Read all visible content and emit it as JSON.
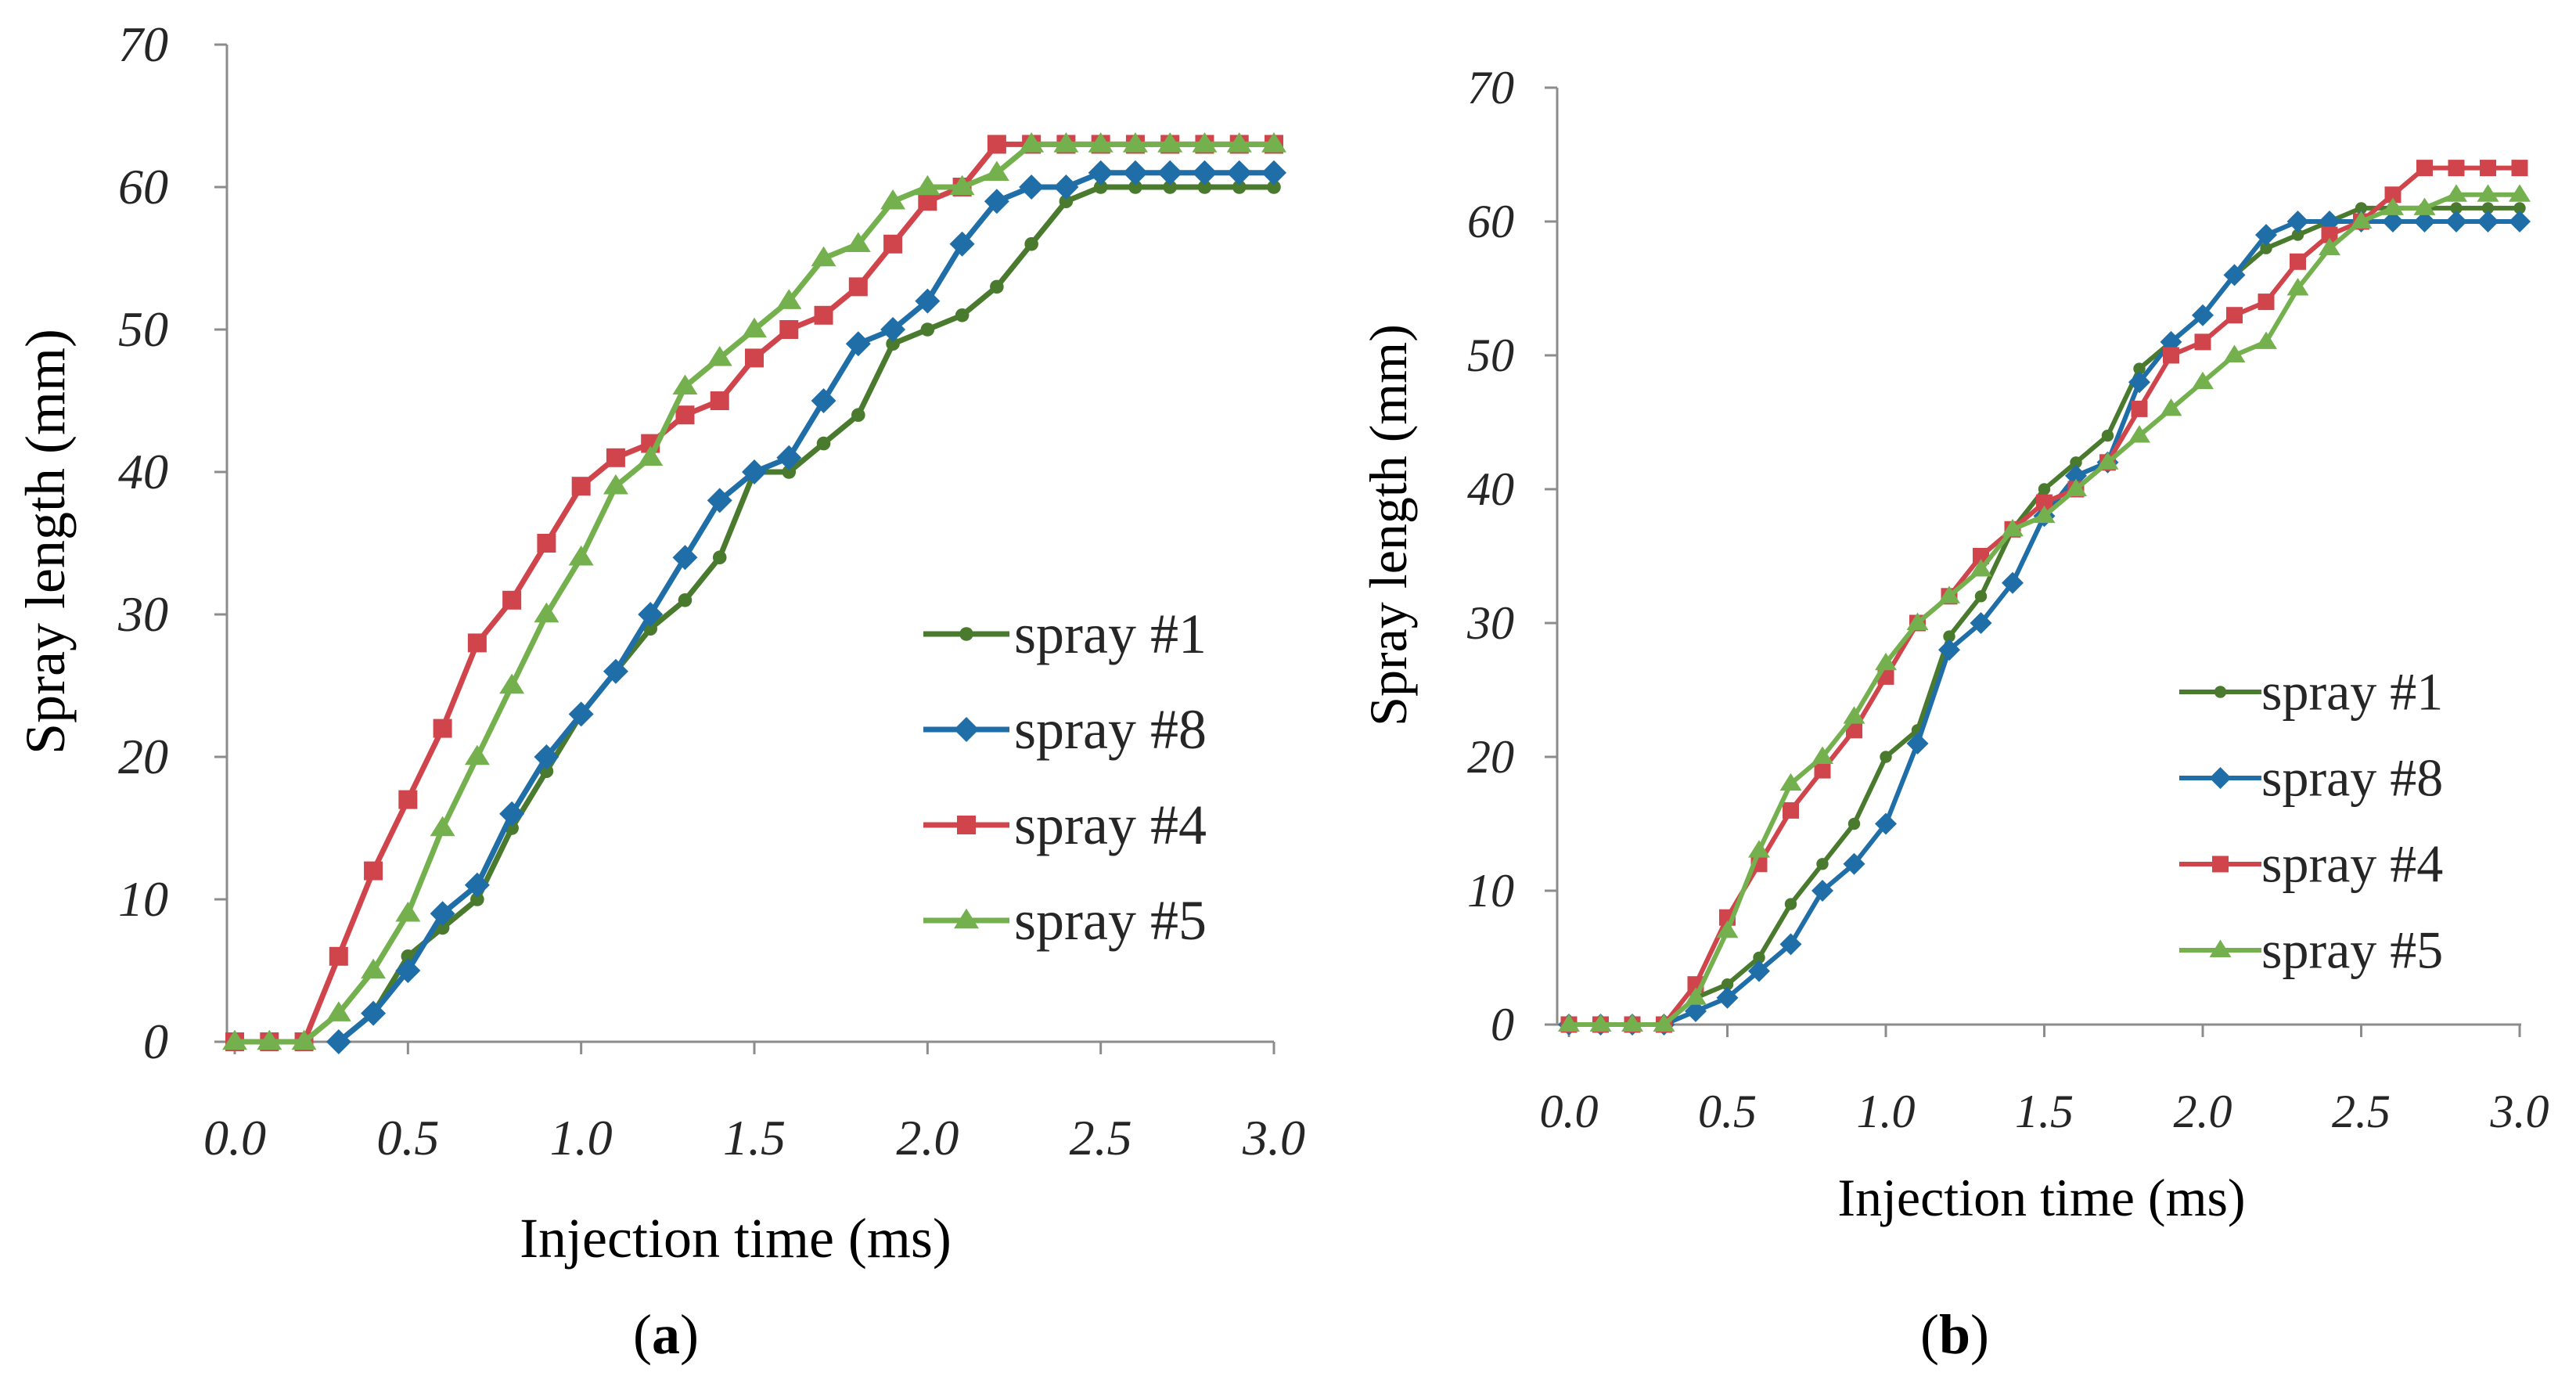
{
  "chart_data": [
    {
      "type": "line",
      "panel_label": {
        "open": "(",
        "letter": "a",
        "close": ")"
      },
      "xlabel": "Injection time (ms)",
      "ylabel": "Spray length (mm)",
      "xlim": [
        0,
        3
      ],
      "ylim": [
        0,
        70
      ],
      "xticks": [
        "0.0",
        "0.5",
        "1.0",
        "1.5",
        "2.0",
        "2.5",
        "3.0"
      ],
      "yticks": [
        "0",
        "10",
        "20",
        "30",
        "40",
        "50",
        "60",
        "70"
      ],
      "legend_position": "center-right",
      "x": [
        0.0,
        0.1,
        0.2,
        0.3,
        0.4,
        0.5,
        0.6,
        0.7,
        0.8,
        0.9,
        1.0,
        1.1,
        1.2,
        1.3,
        1.4,
        1.5,
        1.6,
        1.7,
        1.8,
        1.9,
        2.0,
        2.1,
        2.2,
        2.3,
        2.4,
        2.5,
        2.6,
        2.7,
        2.8,
        2.9,
        3.0
      ],
      "series": [
        {
          "name": "spray #1",
          "color": "#4a7a2e",
          "marker": "circle",
          "x": [
            0.3,
            0.4,
            0.5,
            0.6,
            0.7,
            0.8,
            0.9,
            1.0,
            1.1,
            1.2,
            1.3,
            1.4,
            1.5,
            1.6,
            1.7,
            1.8,
            1.9,
            2.0,
            2.1,
            2.2,
            2.3,
            2.4,
            2.5,
            2.6,
            2.7,
            2.8,
            2.9,
            3.0
          ],
          "values": [
            0,
            2,
            6,
            8,
            10,
            15,
            19,
            23,
            26,
            29,
            31,
            34,
            40,
            40,
            42,
            44,
            49,
            50,
            51,
            53,
            56,
            59,
            60,
            60,
            60,
            60,
            60,
            60
          ]
        },
        {
          "name": "spray #8",
          "color": "#1f6ea8",
          "marker": "diamond",
          "x": [
            0.3,
            0.4,
            0.5,
            0.6,
            0.7,
            0.8,
            0.9,
            1.0,
            1.1,
            1.2,
            1.3,
            1.4,
            1.5,
            1.6,
            1.7,
            1.8,
            1.9,
            2.0,
            2.1,
            2.2,
            2.3,
            2.4,
            2.5,
            2.6,
            2.7,
            2.8,
            2.9,
            3.0
          ],
          "values": [
            0,
            2,
            5,
            9,
            11,
            16,
            20,
            23,
            26,
            30,
            34,
            38,
            40,
            41,
            45,
            49,
            50,
            52,
            56,
            59,
            60,
            60,
            61,
            61,
            61,
            61,
            61,
            61
          ]
        },
        {
          "name": "spray #4",
          "color": "#d0454c",
          "marker": "square",
          "x": [
            0.0,
            0.1,
            0.2,
            0.3,
            0.4,
            0.5,
            0.6,
            0.7,
            0.8,
            0.9,
            1.0,
            1.1,
            1.2,
            1.3,
            1.4,
            1.5,
            1.6,
            1.7,
            1.8,
            1.9,
            2.0,
            2.1,
            2.2,
            2.3,
            2.4,
            2.5,
            2.6,
            2.7,
            2.8,
            2.9,
            3.0
          ],
          "values": [
            0,
            0,
            0,
            6,
            12,
            17,
            22,
            28,
            31,
            35,
            39,
            41,
            42,
            44,
            45,
            48,
            50,
            51,
            53,
            56,
            59,
            60,
            63,
            63,
            63,
            63,
            63,
            63,
            63,
            63,
            63
          ]
        },
        {
          "name": "spray #5",
          "color": "#74b14e",
          "marker": "triangle",
          "x": [
            0.0,
            0.1,
            0.2,
            0.3,
            0.4,
            0.5,
            0.6,
            0.7,
            0.8,
            0.9,
            1.0,
            1.1,
            1.2,
            1.3,
            1.4,
            1.5,
            1.6,
            1.7,
            1.8,
            1.9,
            2.0,
            2.1,
            2.2,
            2.3,
            2.4,
            2.5,
            2.6,
            2.7,
            2.8,
            2.9,
            3.0
          ],
          "values": [
            0,
            0,
            0,
            2,
            5,
            9,
            15,
            20,
            25,
            30,
            34,
            39,
            41,
            46,
            48,
            50,
            52,
            55,
            56,
            59,
            60,
            60,
            61,
            63,
            63,
            63,
            63,
            63,
            63,
            63,
            63
          ]
        }
      ]
    },
    {
      "type": "line",
      "panel_label": {
        "open": "(",
        "letter": "b",
        "close": ")"
      },
      "xlabel": "Injection time (ms)",
      "ylabel": "Spray length (mm)",
      "xlim": [
        0,
        3
      ],
      "ylim": [
        0,
        70
      ],
      "xticks": [
        "0.0",
        "0.5",
        "1.0",
        "1.5",
        "2.0",
        "2.5",
        "3.0"
      ],
      "yticks": [
        "0",
        "10",
        "20",
        "30",
        "40",
        "50",
        "60",
        "70"
      ],
      "legend_position": "center-right",
      "x": [
        0.0,
        0.1,
        0.2,
        0.3,
        0.4,
        0.5,
        0.6,
        0.7,
        0.8,
        0.9,
        1.0,
        1.1,
        1.2,
        1.3,
        1.4,
        1.5,
        1.6,
        1.7,
        1.8,
        1.9,
        2.0,
        2.1,
        2.2,
        2.3,
        2.4,
        2.5,
        2.6,
        2.7,
        2.8,
        2.9,
        3.0
      ],
      "series": [
        {
          "name": "spray #1",
          "color": "#4a7a2e",
          "marker": "circle",
          "x": [
            0.0,
            0.1,
            0.2,
            0.3,
            0.4,
            0.5,
            0.6,
            0.7,
            0.8,
            0.9,
            1.0,
            1.1,
            1.2,
            1.3,
            1.4,
            1.5,
            1.6,
            1.7,
            1.8,
            1.9,
            2.0,
            2.1,
            2.2,
            2.3,
            2.4,
            2.5,
            2.6,
            2.7,
            2.8,
            2.9,
            3.0
          ],
          "values": [
            0,
            0,
            0,
            0,
            2,
            3,
            5,
            9,
            12,
            15,
            20,
            22,
            29,
            32,
            37,
            40,
            42,
            44,
            49,
            51,
            53,
            56,
            58,
            59,
            60,
            61,
            61,
            61,
            61,
            61,
            61
          ]
        },
        {
          "name": "spray #8",
          "color": "#1f6ea8",
          "marker": "diamond",
          "x": [
            0.0,
            0.1,
            0.2,
            0.3,
            0.4,
            0.5,
            0.6,
            0.7,
            0.8,
            0.9,
            1.0,
            1.1,
            1.2,
            1.3,
            1.4,
            1.5,
            1.6,
            1.7,
            1.8,
            1.9,
            2.0,
            2.1,
            2.2,
            2.3,
            2.4,
            2.5,
            2.6,
            2.7,
            2.8,
            2.9,
            3.0
          ],
          "values": [
            0,
            0,
            0,
            0,
            1,
            2,
            4,
            6,
            10,
            12,
            15,
            21,
            28,
            30,
            33,
            38,
            41,
            42,
            48,
            51,
            53,
            56,
            59,
            60,
            60,
            60,
            60,
            60,
            60,
            60,
            60
          ]
        },
        {
          "name": "spray #4",
          "color": "#d0454c",
          "marker": "square",
          "x": [
            0.0,
            0.1,
            0.2,
            0.3,
            0.4,
            0.5,
            0.6,
            0.7,
            0.8,
            0.9,
            1.0,
            1.1,
            1.2,
            1.3,
            1.4,
            1.5,
            1.6,
            1.7,
            1.8,
            1.9,
            2.0,
            2.1,
            2.2,
            2.3,
            2.4,
            2.5,
            2.6,
            2.7,
            2.8,
            2.9,
            3.0
          ],
          "values": [
            0,
            0,
            0,
            0,
            3,
            8,
            12,
            16,
            19,
            22,
            26,
            30,
            32,
            35,
            37,
            39,
            40,
            42,
            46,
            50,
            51,
            53,
            54,
            57,
            59,
            60,
            62,
            64,
            64,
            64,
            64
          ]
        },
        {
          "name": "spray #5",
          "color": "#74b14e",
          "marker": "triangle",
          "x": [
            0.0,
            0.1,
            0.2,
            0.3,
            0.4,
            0.5,
            0.6,
            0.7,
            0.8,
            0.9,
            1.0,
            1.1,
            1.2,
            1.3,
            1.4,
            1.5,
            1.6,
            1.7,
            1.8,
            1.9,
            2.0,
            2.1,
            2.2,
            2.3,
            2.4,
            2.5,
            2.6,
            2.7,
            2.8,
            2.9,
            3.0
          ],
          "values": [
            0,
            0,
            0,
            0,
            2,
            7,
            13,
            18,
            20,
            23,
            27,
            30,
            32,
            34,
            37,
            38,
            40,
            42,
            44,
            46,
            48,
            50,
            51,
            55,
            58,
            60,
            61,
            61,
            62,
            62,
            62
          ]
        }
      ]
    }
  ]
}
